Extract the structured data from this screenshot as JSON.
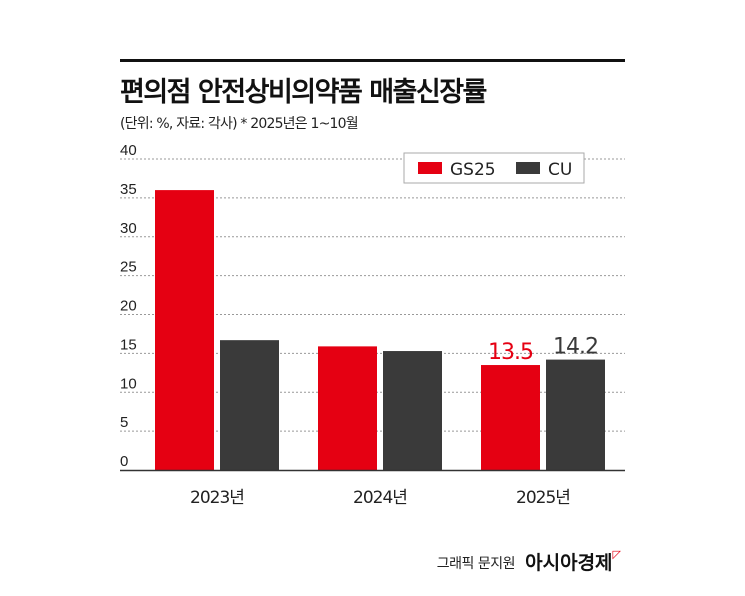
{
  "chart_data": {
    "type": "bar",
    "title": "편의점 안전상비의약품 매출신장률",
    "subtitle": "(단위: %, 자료: 각사)  * 2025년은 1~10월",
    "categories": [
      "2023년",
      "2024년",
      "2025년"
    ],
    "series": [
      {
        "name": "GS25",
        "color": "#e50012",
        "values": [
          36.0,
          15.9,
          13.5
        ]
      },
      {
        "name": "CU",
        "color": "#3a3a3a",
        "values": [
          16.7,
          15.3,
          14.2
        ]
      }
    ],
    "data_labels": [
      {
        "series": "GS25",
        "category": "2025년",
        "text": "13.5"
      },
      {
        "series": "CU",
        "category": "2025년",
        "text": "14.2"
      }
    ],
    "yticks": [
      "0",
      "5",
      "10",
      "15",
      "20",
      "25",
      "30",
      "35",
      "40"
    ],
    "ylim": [
      0,
      40
    ],
    "grid": true,
    "legend_position": "top-right"
  },
  "footer": {
    "credit": "그래픽 문지원",
    "brand": "아시아경제"
  }
}
